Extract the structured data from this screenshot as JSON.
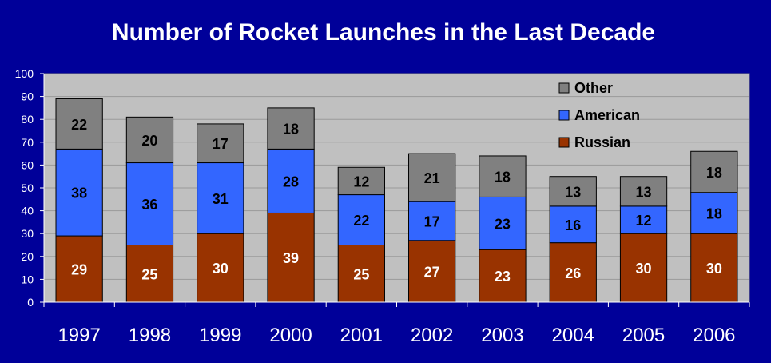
{
  "chart_data": {
    "type": "bar",
    "stacked": true,
    "title": "Number of Rocket Launches in the Last Decade",
    "categories": [
      "1997",
      "1998",
      "1999",
      "2000",
      "2001",
      "2002",
      "2003",
      "2004",
      "2005",
      "2006"
    ],
    "series": [
      {
        "name": "Russian",
        "color": "#993300",
        "label_color": "#ffffff",
        "values": [
          29,
          25,
          30,
          39,
          25,
          27,
          23,
          26,
          30,
          30
        ]
      },
      {
        "name": "American",
        "color": "#3366ff",
        "label_color": "#000000",
        "values": [
          38,
          36,
          31,
          28,
          22,
          17,
          23,
          16,
          12,
          18
        ]
      },
      {
        "name": "Other",
        "color": "#808080",
        "label_color": "#000000",
        "values": [
          22,
          20,
          17,
          18,
          12,
          21,
          18,
          13,
          13,
          18
        ]
      }
    ],
    "legend_order": [
      "Other",
      "American",
      "Russian"
    ],
    "legend_position": "top-right",
    "ylim": [
      0,
      100
    ],
    "yticks": [
      "0",
      "10",
      "20",
      "30",
      "40",
      "50",
      "60",
      "70",
      "80",
      "90",
      "100"
    ],
    "grid": true,
    "plot_background": "#c0c0c0",
    "page_background": "#000099"
  }
}
